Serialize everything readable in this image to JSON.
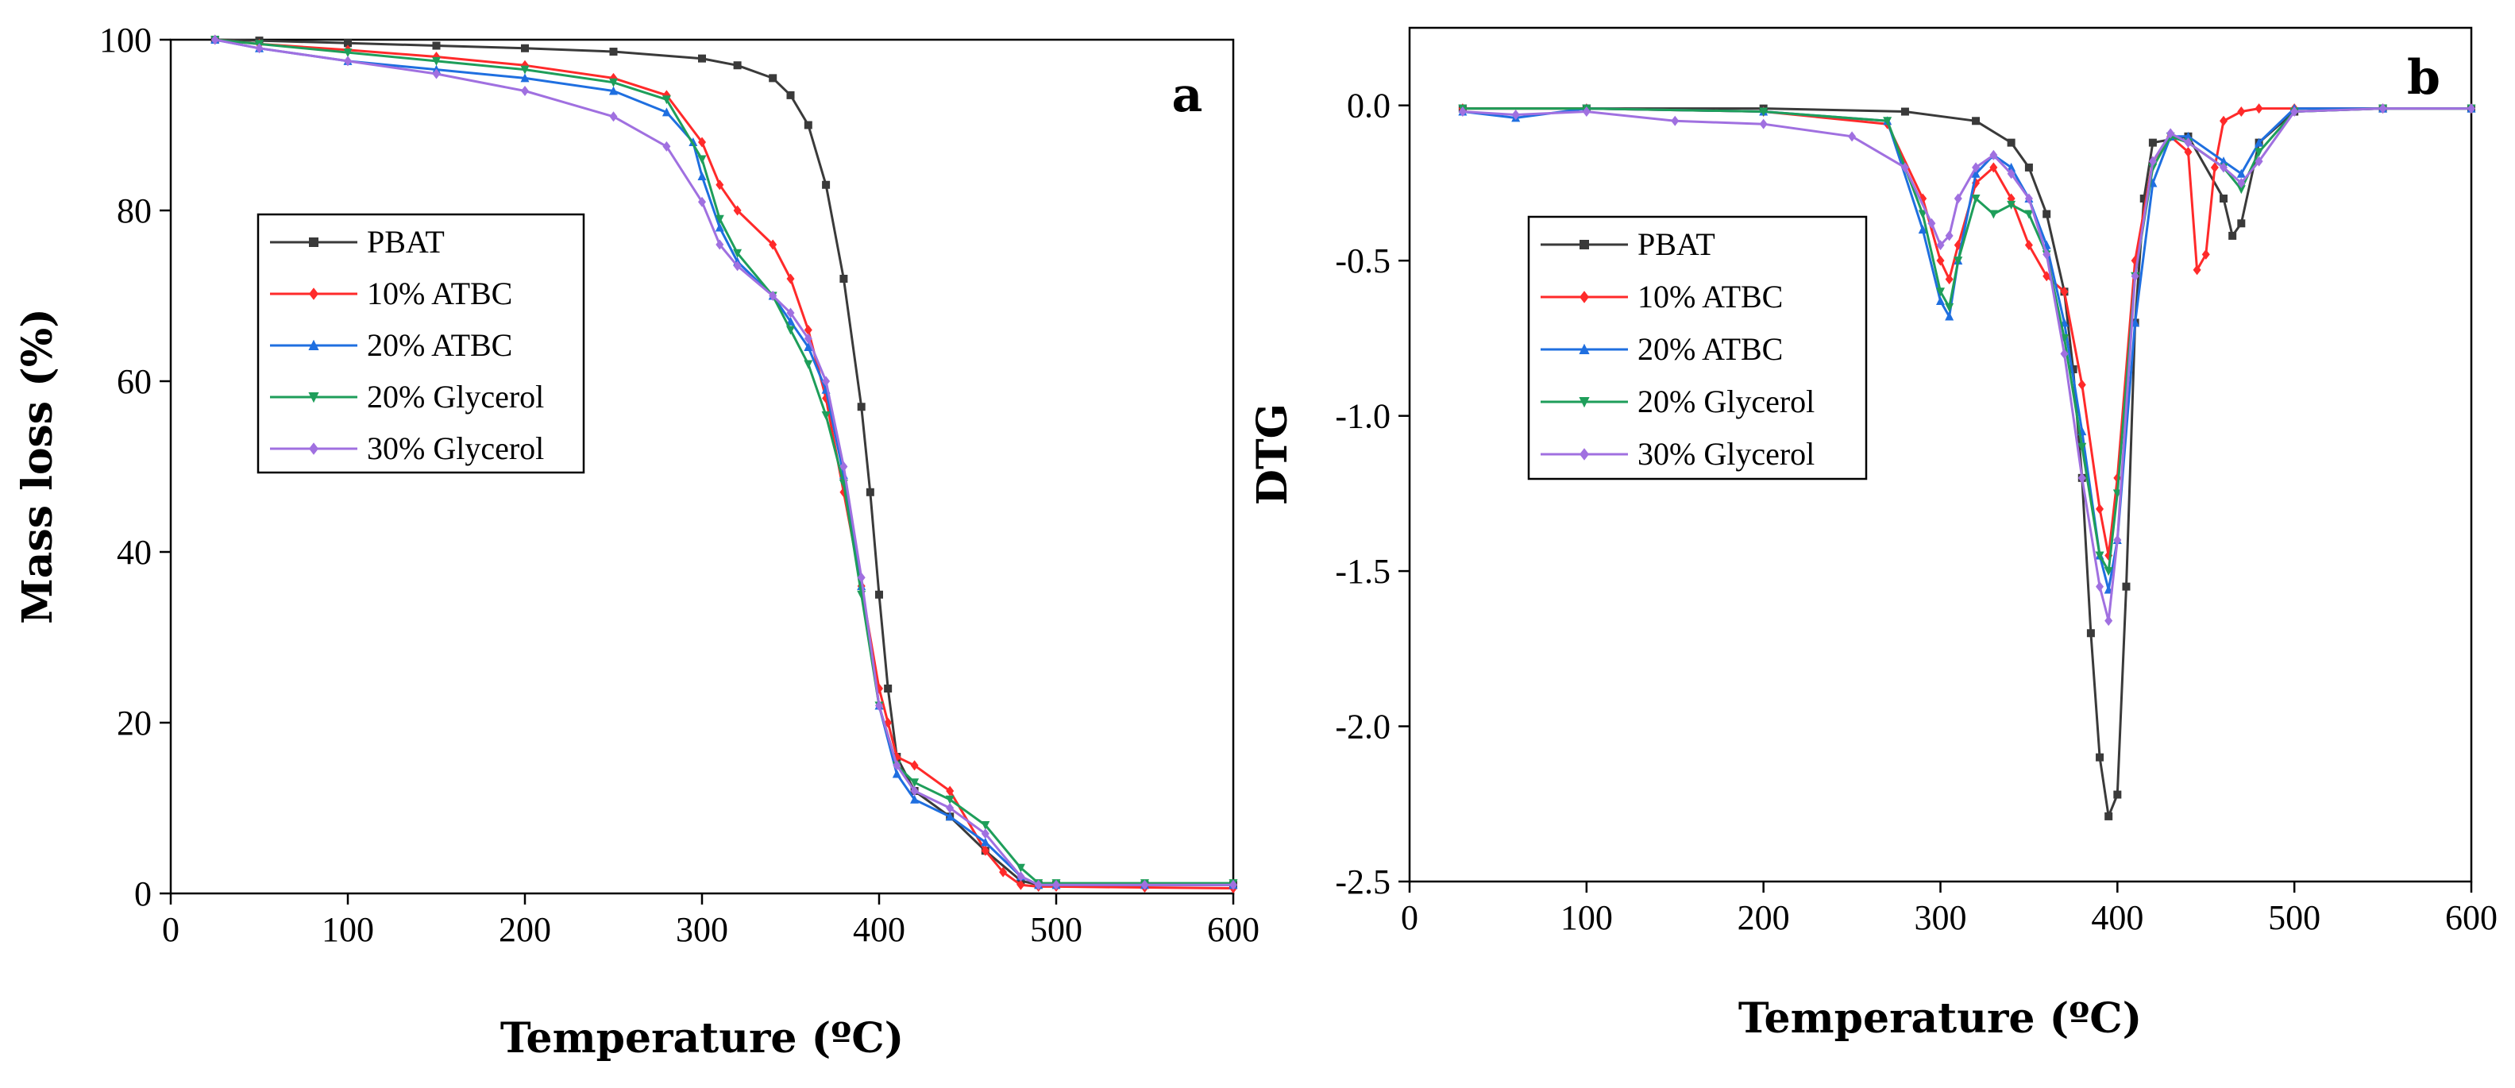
{
  "colors": {
    "PBAT": "#3a3a3a",
    "10% ATBC": "#ff2a2a",
    "20% ATBC": "#1f6fe0",
    "20% Glycerol": "#1e9e5a",
    "30% Glycerol": "#a070e0"
  },
  "chart_data": [
    {
      "type": "line",
      "panel": "a",
      "xlabel": "Temperature (ºC)",
      "ylabel": "Mass loss (%)",
      "xlim": [
        0,
        600
      ],
      "ylim": [
        0,
        100
      ],
      "xticks": [
        0,
        100,
        200,
        300,
        400,
        500,
        600
      ],
      "yticks": [
        0,
        20,
        40,
        60,
        80,
        100
      ],
      "legend_position": "upper-left",
      "series": [
        {
          "name": "PBAT",
          "x": [
            25,
            50,
            100,
            150,
            200,
            250,
            300,
            320,
            340,
            350,
            360,
            370,
            380,
            390,
            395,
            400,
            405,
            410,
            420,
            440,
            460,
            480,
            490,
            500,
            550,
            600
          ],
          "y": [
            100,
            99.9,
            99.6,
            99.3,
            99,
            98.6,
            97.8,
            97,
            95.5,
            93.5,
            90,
            83,
            72,
            57,
            47,
            35,
            24,
            16,
            12,
            9,
            5,
            1.5,
            1,
            1,
            1,
            1
          ]
        },
        {
          "name": "10% ATBC",
          "x": [
            25,
            50,
            100,
            150,
            200,
            250,
            280,
            300,
            310,
            320,
            340,
            350,
            360,
            370,
            380,
            390,
            400,
            405,
            410,
            420,
            440,
            460,
            470,
            480,
            490,
            500,
            550,
            600
          ],
          "y": [
            100,
            99.5,
            98.8,
            98,
            97,
            95.5,
            93.5,
            88,
            83,
            80,
            76,
            72,
            66,
            58,
            47,
            36,
            24,
            20,
            16,
            15,
            12,
            5,
            2.5,
            1,
            0.8,
            0.8,
            0.7,
            0.6
          ]
        },
        {
          "name": "20% ATBC",
          "x": [
            25,
            50,
            100,
            150,
            200,
            250,
            280,
            295,
            300,
            310,
            320,
            340,
            350,
            360,
            370,
            380,
            390,
            400,
            410,
            420,
            440,
            460,
            480,
            490,
            500,
            550,
            600
          ],
          "y": [
            100,
            99,
            97.5,
            96.5,
            95.5,
            94,
            91.5,
            88,
            84,
            78,
            74,
            70,
            67,
            64,
            59,
            49,
            36,
            22,
            14,
            11,
            9,
            6,
            2,
            1,
            1,
            1,
            1
          ]
        },
        {
          "name": "20% Glycerol",
          "x": [
            25,
            50,
            100,
            150,
            200,
            250,
            280,
            300,
            310,
            320,
            340,
            350,
            360,
            370,
            380,
            390,
            400,
            410,
            420,
            440,
            460,
            480,
            490,
            500,
            550,
            600
          ],
          "y": [
            100,
            99.5,
            98.5,
            97.5,
            96.5,
            95,
            93,
            86,
            79,
            75,
            70,
            66,
            62,
            56,
            48,
            35,
            22,
            15,
            13,
            11,
            8,
            3,
            1.2,
            1.2,
            1.2,
            1.2
          ]
        },
        {
          "name": "30% Glycerol",
          "x": [
            25,
            50,
            100,
            150,
            200,
            250,
            280,
            300,
            310,
            320,
            340,
            350,
            360,
            370,
            380,
            390,
            400,
            410,
            420,
            440,
            460,
            480,
            490,
            500,
            550,
            600
          ],
          "y": [
            100,
            99,
            97.5,
            96,
            94,
            91,
            87.5,
            81,
            76,
            73.5,
            70,
            68,
            65,
            60,
            50,
            37,
            22,
            15,
            12,
            10,
            7,
            2,
            1,
            1,
            1,
            1
          ]
        }
      ]
    },
    {
      "type": "line",
      "panel": "b",
      "xlabel": "Temperature (ºC)",
      "ylabel": "DTG",
      "xlim": [
        0,
        600
      ],
      "ylim": [
        -2.5,
        0.25
      ],
      "xticks": [
        0,
        100,
        200,
        300,
        400,
        500,
        600
      ],
      "yticks": [
        -2.5,
        -2.0,
        -1.5,
        -1.0,
        -0.5,
        0.0
      ],
      "ytick_labels": [
        "-2.5",
        "-2.0",
        "-1.5",
        "-1.0",
        "-0.5",
        "0.0"
      ],
      "legend_position": "upper-left",
      "series": [
        {
          "name": "PBAT",
          "x": [
            30,
            100,
            200,
            280,
            320,
            340,
            350,
            360,
            370,
            375,
            380,
            385,
            390,
            395,
            400,
            405,
            410,
            415,
            420,
            440,
            460,
            465,
            470,
            480,
            500,
            550,
            600
          ],
          "y": [
            -0.01,
            -0.01,
            -0.01,
            -0.02,
            -0.05,
            -0.12,
            -0.2,
            -0.35,
            -0.6,
            -0.85,
            -1.2,
            -1.7,
            -2.1,
            -2.29,
            -2.22,
            -1.55,
            -0.7,
            -0.3,
            -0.12,
            -0.1,
            -0.3,
            -0.42,
            -0.38,
            -0.12,
            -0.02,
            -0.01,
            -0.01
          ]
        },
        {
          "name": "10% ATBC",
          "x": [
            30,
            100,
            200,
            270,
            290,
            300,
            305,
            310,
            320,
            330,
            340,
            350,
            360,
            370,
            380,
            390,
            395,
            400,
            410,
            420,
            430,
            440,
            445,
            450,
            455,
            460,
            470,
            480,
            500,
            550,
            600
          ],
          "y": [
            -0.01,
            -0.01,
            -0.02,
            -0.06,
            -0.3,
            -0.5,
            -0.56,
            -0.45,
            -0.25,
            -0.2,
            -0.3,
            -0.45,
            -0.55,
            -0.6,
            -0.9,
            -1.3,
            -1.45,
            -1.2,
            -0.5,
            -0.18,
            -0.1,
            -0.15,
            -0.53,
            -0.48,
            -0.2,
            -0.05,
            -0.02,
            -0.01,
            -0.01,
            -0.01,
            -0.01
          ]
        },
        {
          "name": "20% ATBC",
          "x": [
            30,
            60,
            100,
            200,
            270,
            290,
            300,
            305,
            310,
            320,
            330,
            340,
            350,
            360,
            370,
            380,
            390,
            395,
            400,
            410,
            420,
            430,
            440,
            460,
            470,
            480,
            500,
            550,
            600
          ],
          "y": [
            -0.02,
            -0.04,
            -0.01,
            -0.02,
            -0.05,
            -0.4,
            -0.63,
            -0.68,
            -0.5,
            -0.22,
            -0.16,
            -0.2,
            -0.3,
            -0.45,
            -0.7,
            -1.05,
            -1.45,
            -1.56,
            -1.4,
            -0.7,
            -0.25,
            -0.1,
            -0.1,
            -0.18,
            -0.22,
            -0.12,
            -0.01,
            -0.01,
            -0.01
          ]
        },
        {
          "name": "20% Glycerol",
          "x": [
            30,
            100,
            200,
            270,
            290,
            300,
            305,
            310,
            320,
            330,
            340,
            350,
            360,
            370,
            380,
            390,
            395,
            400,
            410,
            420,
            430,
            440,
            460,
            470,
            480,
            500,
            550,
            600
          ],
          "y": [
            -0.01,
            -0.01,
            -0.02,
            -0.05,
            -0.35,
            -0.6,
            -0.65,
            -0.5,
            -0.3,
            -0.35,
            -0.32,
            -0.35,
            -0.48,
            -0.75,
            -1.1,
            -1.45,
            -1.5,
            -1.25,
            -0.55,
            -0.2,
            -0.1,
            -0.12,
            -0.2,
            -0.27,
            -0.15,
            -0.02,
            -0.01,
            -0.01
          ]
        },
        {
          "name": "30% Glycerol",
          "x": [
            30,
            60,
            100,
            150,
            200,
            250,
            280,
            295,
            300,
            305,
            310,
            320,
            330,
            340,
            350,
            360,
            370,
            380,
            390,
            395,
            400,
            410,
            420,
            430,
            440,
            460,
            470,
            480,
            500,
            550,
            600
          ],
          "y": [
            -0.02,
            -0.03,
            -0.02,
            -0.05,
            -0.06,
            -0.1,
            -0.2,
            -0.38,
            -0.45,
            -0.42,
            -0.3,
            -0.2,
            -0.16,
            -0.22,
            -0.3,
            -0.48,
            -0.8,
            -1.2,
            -1.55,
            -1.66,
            -1.4,
            -0.55,
            -0.18,
            -0.09,
            -0.12,
            -0.2,
            -0.25,
            -0.18,
            -0.02,
            -0.01,
            -0.01
          ]
        }
      ]
    }
  ]
}
